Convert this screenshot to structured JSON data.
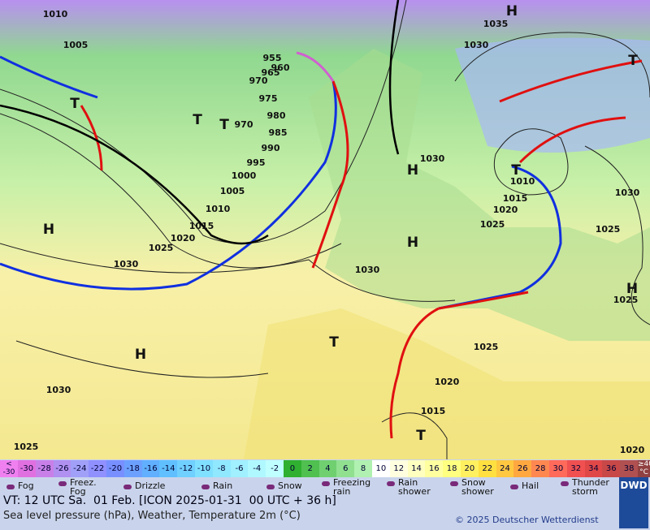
{
  "map": {
    "isobar_labels": [
      "1010",
      "1005",
      "1035",
      "1030",
      "955",
      "960",
      "965",
      "970",
      "975",
      "980",
      "985",
      "990",
      "995",
      "1000",
      "1005",
      "1010",
      "1015",
      "1020",
      "1025",
      "1030",
      "1030",
      "1030",
      "1030",
      "1025",
      "1025",
      "1020",
      "1015",
      "1010",
      "970",
      "1025",
      "1020",
      "1015",
      "1030",
      "1025",
      "1020",
      "1025"
    ],
    "centers": [
      "H",
      "T",
      "T",
      "T",
      "H",
      "H",
      "T",
      "H",
      "T",
      "H",
      "T",
      "T",
      "H"
    ]
  },
  "color_scale": {
    "low_label": "<\n-30",
    "high_label": "≥40\n°C",
    "labels": [
      "-30",
      "-28",
      "-26",
      "-24",
      "-22",
      "-20",
      "-18",
      "-16",
      "-14",
      "-12",
      "-10",
      "-8",
      "-6",
      "-4",
      "-2",
      "0",
      "2",
      "4",
      "6",
      "8",
      "10",
      "12",
      "14",
      "16",
      "18",
      "20",
      "22",
      "24",
      "26",
      "28",
      "30",
      "32",
      "34",
      "36",
      "38"
    ],
    "colors": [
      "#e070e0",
      "#c880e8",
      "#b090f0",
      "#a0a0f8",
      "#9090ff",
      "#7890ff",
      "#6ca0ff",
      "#60b0ff",
      "#60c0ff",
      "#70d0ff",
      "#80e0ff",
      "#90e8ff",
      "#a0f0ff",
      "#b0f8ff",
      "#c0ffff",
      "#30b030",
      "#50c050",
      "#70d070",
      "#90e090",
      "#b0f0b0",
      "#ffffff",
      "#ffffe0",
      "#ffffc0",
      "#ffffa0",
      "#ffff80",
      "#fff060",
      "#ffe040",
      "#ffc840",
      "#ffa840",
      "#ff8850",
      "#ff6a5a",
      "#f05050",
      "#e04848",
      "#c84848",
      "#b05050"
    ]
  },
  "weather_legend": [
    "Fog",
    "Freez.\nFog",
    "Drizzle",
    "Rain",
    "Snow",
    "Freezing\nrain",
    "Rain\nshower",
    "Snow\nshower",
    "Hail",
    "Thunder\nstorm"
  ],
  "footer": {
    "valid_time": "VT: 12 UTC Sa.  01 Feb. [ICON 2025-01-31  00 UTC + 36 h]",
    "description": "Sea level pressure (hPa), Weather, Temperature 2m (°C)",
    "copyright": "© 2025 Deutscher Wetterdienst",
    "logo": "DWD"
  }
}
